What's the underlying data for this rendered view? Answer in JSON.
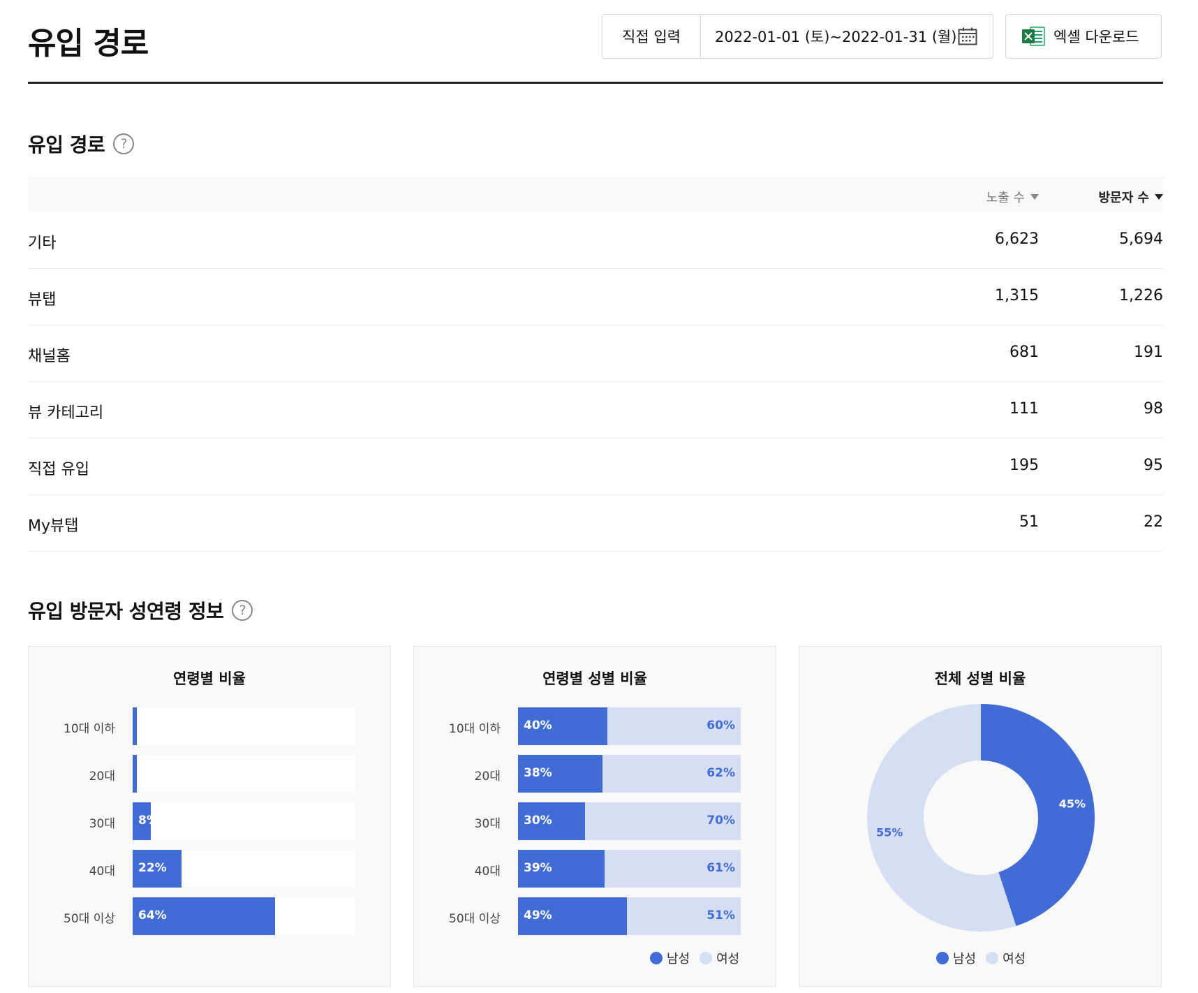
{
  "header": {
    "title": "유입 경로",
    "date_mode": "직접 입력",
    "date_range": "2022-01-01 (토)~2022-01-31 (월)",
    "excel_label": "엑셀 다운로드"
  },
  "sections": {
    "inflow_title": "유입 경로",
    "demographics_title": "유입 방문자 성연령 정보"
  },
  "table": {
    "columns": {
      "impressions": "노출 수",
      "visitors": "방문자 수"
    },
    "rows": [
      {
        "source": "기타",
        "impressions": "6,623",
        "visitors": "5,694"
      },
      {
        "source": "뷰탭",
        "impressions": "1,315",
        "visitors": "1,226"
      },
      {
        "source": "채널홈",
        "impressions": "681",
        "visitors": "191"
      },
      {
        "source": "뷰 카테고리",
        "impressions": "111",
        "visitors": "98"
      },
      {
        "source": "직접 유입",
        "impressions": "195",
        "visitors": "95"
      },
      {
        "source": "My뷰탭",
        "impressions": "51",
        "visitors": "22"
      }
    ]
  },
  "colors": {
    "male": "#416cd6",
    "female": "#d6def4"
  },
  "legend": {
    "male": "남성",
    "female": "여성"
  },
  "chart_data": [
    {
      "type": "bar",
      "title": "연령별 비율",
      "categories": [
        "10대 이하",
        "20대",
        "30대",
        "40대",
        "50대 이상"
      ],
      "values": [
        2,
        2,
        8,
        22,
        64
      ],
      "labels": [
        "",
        "",
        "8%",
        "22%",
        "64%"
      ],
      "ylim": [
        0,
        100
      ]
    },
    {
      "type": "bar",
      "title": "연령별 성별 비율",
      "categories": [
        "10대 이하",
        "20대",
        "30대",
        "40대",
        "50대 이상"
      ],
      "series": [
        {
          "name": "남성",
          "values": [
            40,
            38,
            30,
            39,
            49
          ],
          "labels": [
            "40%",
            "38%",
            "30%",
            "39%",
            "49%"
          ]
        },
        {
          "name": "여성",
          "values": [
            60,
            62,
            70,
            61,
            51
          ],
          "labels": [
            "60%",
            "62%",
            "70%",
            "61%",
            "51%"
          ]
        }
      ],
      "stacked": true,
      "ylim": [
        0,
        100
      ]
    },
    {
      "type": "pie",
      "title": "전체 성별 비율",
      "categories": [
        "남성",
        "여성"
      ],
      "values": [
        45,
        55
      ],
      "labels": [
        "45%",
        "55%"
      ],
      "donut": true
    }
  ]
}
